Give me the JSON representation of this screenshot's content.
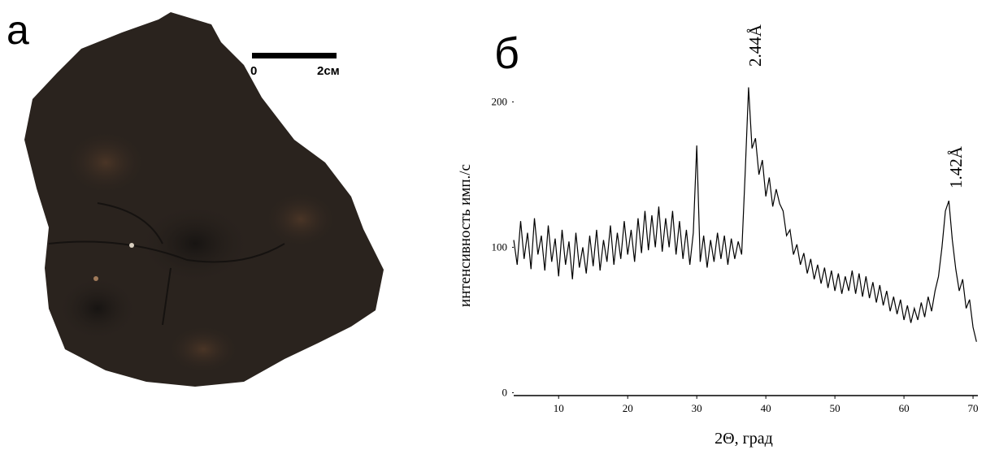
{
  "panel_labels": [
    "а",
    "б"
  ],
  "scale_bar": {
    "start": "0",
    "end": "2см"
  },
  "chart_data": {
    "type": "line",
    "y_label": "интенсивность имп./с",
    "x_label": "2Θ, град",
    "annotations": [
      "2.44Å",
      "1.42Å"
    ],
    "x": [
      3.5,
      4,
      4.5,
      5,
      5.5,
      6,
      6.5,
      7,
      7.5,
      8,
      8.5,
      9,
      9.5,
      10,
      10.5,
      11,
      11.5,
      12,
      12.5,
      13,
      13.5,
      14,
      14.5,
      15,
      15.5,
      16,
      16.5,
      17,
      17.5,
      18,
      18.5,
      19,
      19.5,
      20,
      20.5,
      21,
      21.5,
      22,
      22.5,
      23,
      23.5,
      24,
      24.5,
      25,
      25.5,
      26,
      26.5,
      27,
      27.5,
      28,
      28.5,
      29,
      29.5,
      30,
      30.5,
      31,
      31.5,
      32,
      32.5,
      33,
      33.5,
      34,
      34.5,
      35,
      35.5,
      36,
      36.5,
      37,
      37.5,
      38,
      38.5,
      39,
      39.5,
      40,
      40.5,
      41,
      41.5,
      42,
      42.5,
      43,
      43.5,
      44,
      44.5,
      45,
      45.5,
      46,
      46.5,
      47,
      47.5,
      48,
      48.5,
      49,
      49.5,
      50,
      50.5,
      51,
      51.5,
      52,
      52.5,
      53,
      53.5,
      54,
      54.5,
      55,
      55.5,
      56,
      56.5,
      57,
      57.5,
      58,
      58.5,
      59,
      59.5,
      60,
      60.5,
      61,
      61.5,
      62,
      62.5,
      63,
      63.5,
      64,
      64.5,
      65,
      65.5,
      66,
      66.5,
      67,
      67.5,
      68,
      68.5,
      69,
      69.5,
      70,
      70.5
    ],
    "series": [
      {
        "color": "#000000",
        "values": [
          105,
          88,
          118,
          92,
          110,
          85,
          120,
          95,
          108,
          84,
          115,
          90,
          106,
          80,
          112,
          88,
          104,
          78,
          110,
          86,
          100,
          82,
          108,
          87,
          112,
          84,
          105,
          90,
          115,
          88,
          110,
          92,
          118,
          95,
          112,
          90,
          120,
          96,
          125,
          98,
          122,
          100,
          128,
          97,
          120,
          100,
          125,
          95,
          118,
          92,
          112,
          88,
          110,
          170,
          90,
          108,
          86,
          105,
          90,
          110,
          92,
          108,
          88,
          106,
          92,
          104,
          95,
          150,
          210,
          168,
          175,
          150,
          160,
          135,
          148,
          128,
          140,
          130,
          125,
          108,
          112,
          95,
          102,
          88,
          96,
          82,
          92,
          78,
          88,
          75,
          86,
          72,
          84,
          70,
          82,
          68,
          80,
          70,
          84,
          68,
          82,
          66,
          80,
          65,
          76,
          62,
          74,
          60,
          70,
          56,
          66,
          54,
          64,
          50,
          60,
          48,
          58,
          50,
          62,
          52,
          66,
          56,
          70,
          80,
          100,
          125,
          132,
          105,
          85,
          70,
          78,
          58,
          64,
          45,
          35
        ]
      }
    ],
    "xlim": [
      3.5,
      70.7
    ],
    "ylim": [
      -2,
      215
    ],
    "xticks": [
      10,
      20,
      30,
      40,
      50,
      60,
      70
    ],
    "yticks": [
      0,
      100,
      200
    ]
  }
}
